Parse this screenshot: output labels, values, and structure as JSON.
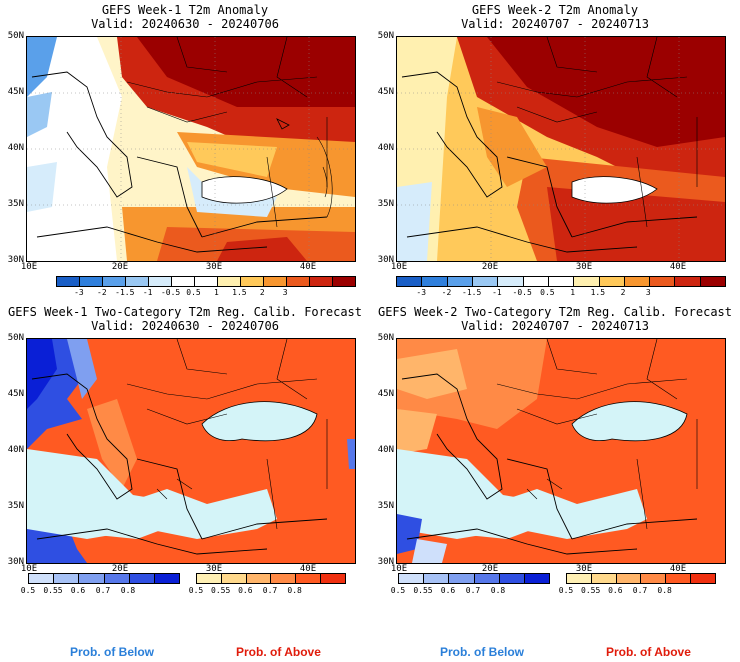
{
  "panels": [
    {
      "title": "GEFS Week-1 T2m Anomaly",
      "valid": "Valid: 20240630 - 20240706"
    },
    {
      "title": "GEFS Week-2 T2m Anomaly",
      "valid": "Valid: 20240707 - 20240713"
    },
    {
      "title": "GEFS Week-1 Two-Category T2m Reg. Calib. Forecast",
      "valid": "Valid: 20240630 - 20240706"
    },
    {
      "title": "GEFS Week-2 Two-Category T2m Reg. Calib. Forecast",
      "valid": "Valid: 20240707 - 20240713"
    }
  ],
  "lat_labels": [
    "50N",
    "45N",
    "40N",
    "35N",
    "30N"
  ],
  "lon_labels": [
    "10E",
    "20E",
    "30E",
    "40E"
  ],
  "anomaly_colorbar": {
    "colors": [
      "#1a5fc7",
      "#2f7fdc",
      "#5aa0ea",
      "#9ac8f3",
      "#d6ecfb",
      "#ffffff",
      "#ffffff",
      "#fff0b0",
      "#ffc95a",
      "#f7962f",
      "#eb5a1e",
      "#cd2510",
      "#9b0000"
    ],
    "ticks": [
      "-3",
      "-2",
      "-1.5",
      "-1",
      "-0.5",
      "0.5",
      "1",
      "1.5",
      "2",
      "3"
    ]
  },
  "below_colorbar": {
    "colors": [
      "#cfe0fb",
      "#a7c2f6",
      "#7f9ff0",
      "#5778ea",
      "#2f4fe2",
      "#0a1fd6"
    ],
    "ticks": [
      "0.5",
      "0.55",
      "0.6",
      "0.7",
      "0.8"
    ],
    "label": "Prob. of Below",
    "label_color": "#2a7fd9"
  },
  "above_colorbar": {
    "colors": [
      "#fff0b4",
      "#ffd98c",
      "#ffb56a",
      "#ff8a46",
      "#ff5a22",
      "#f03010"
    ],
    "ticks": [
      "0.5",
      "0.55",
      "0.6",
      "0.7",
      "0.8"
    ],
    "label": "Prob. of Above",
    "label_color": "#e01b0b"
  }
}
